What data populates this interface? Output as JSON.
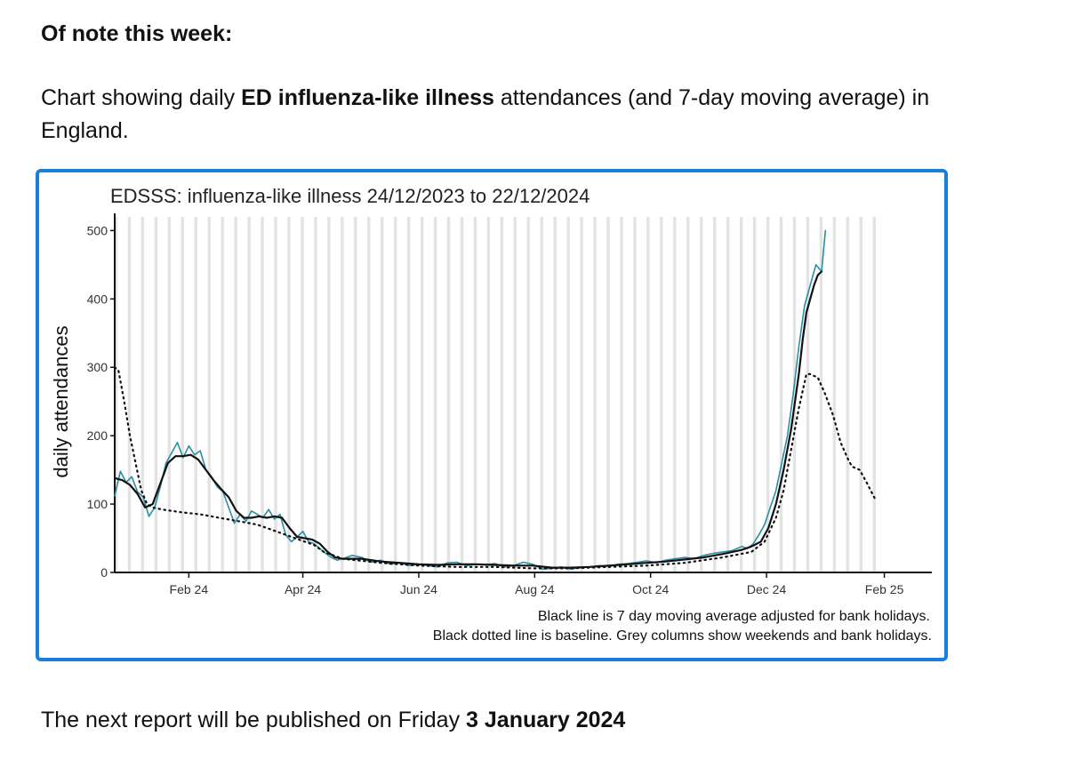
{
  "heading": "Of note this week:",
  "intro": {
    "before": "Chart showing daily ",
    "bold": "ED influenza-like illness",
    "after": " attendances (and 7-day moving average) in England."
  },
  "footer": {
    "before": "The next report will be published on Friday ",
    "bold": "3 January 2024"
  },
  "chart_data": {
    "type": "line",
    "title": "EDSSS: influenza-like illness 24/12/2023 to 22/12/2024",
    "xlabel": "",
    "ylabel": "daily attendances",
    "ylim": [
      0,
      520
    ],
    "xlim_days": [
      0,
      430
    ],
    "y_ticks": [
      0,
      100,
      200,
      300,
      400,
      500
    ],
    "x_ticks": [
      {
        "label": "Feb 24",
        "day": 39
      },
      {
        "label": "Apr 24",
        "day": 99
      },
      {
        "label": "Jun 24",
        "day": 160
      },
      {
        "label": "Aug 24",
        "day": 221
      },
      {
        "label": "Oct 24",
        "day": 282
      },
      {
        "label": "Dec 24",
        "day": 343
      },
      {
        "label": "Feb 25",
        "day": 405
      }
    ],
    "weekend_start_day": 0,
    "weekend_end_day": 402,
    "series": [
      {
        "name": "Daily attendances",
        "color": "#2a8fa5",
        "style": "solid",
        "x": [
          0,
          3,
          6,
          9,
          12,
          15,
          18,
          21,
          24,
          27,
          30,
          33,
          36,
          39,
          42,
          45,
          48,
          51,
          54,
          57,
          60,
          63,
          66,
          69,
          72,
          75,
          78,
          81,
          84,
          87,
          90,
          93,
          96,
          99,
          102,
          105,
          108,
          111,
          114,
          117,
          120,
          125,
          130,
          135,
          140,
          145,
          150,
          155,
          160,
          165,
          170,
          175,
          180,
          185,
          190,
          195,
          200,
          205,
          210,
          215,
          220,
          225,
          230,
          235,
          240,
          245,
          250,
          255,
          260,
          265,
          270,
          275,
          280,
          285,
          290,
          295,
          300,
          305,
          310,
          315,
          320,
          325,
          330,
          333,
          336,
          339,
          342,
          345,
          348,
          351,
          354,
          357,
          360,
          363,
          366,
          369,
          372,
          374
        ],
        "values": [
          112,
          148,
          132,
          140,
          118,
          110,
          82,
          95,
          125,
          160,
          175,
          190,
          168,
          185,
          172,
          178,
          150,
          140,
          125,
          118,
          95,
          72,
          85,
          75,
          90,
          85,
          80,
          92,
          78,
          85,
          55,
          45,
          52,
          60,
          45,
          42,
          35,
          28,
          22,
          18,
          20,
          25,
          22,
          15,
          18,
          12,
          14,
          10,
          12,
          10,
          8,
          14,
          15,
          10,
          12,
          11,
          13,
          8,
          10,
          15,
          12,
          5,
          6,
          8,
          5,
          7,
          8,
          10,
          9,
          12,
          13,
          15,
          17,
          14,
          18,
          20,
          22,
          20,
          25,
          28,
          30,
          32,
          38,
          35,
          42,
          55,
          70,
          95,
          120,
          160,
          200,
          260,
          330,
          390,
          420,
          450,
          440,
          500
        ]
      },
      {
        "name": "7 day moving average",
        "color": "#111111",
        "style": "solid",
        "x": [
          0,
          4,
          8,
          12,
          16,
          20,
          24,
          28,
          32,
          36,
          40,
          44,
          48,
          52,
          56,
          60,
          64,
          68,
          72,
          76,
          80,
          84,
          88,
          92,
          96,
          100,
          104,
          108,
          112,
          116,
          120,
          130,
          140,
          150,
          160,
          170,
          180,
          190,
          200,
          210,
          220,
          230,
          240,
          250,
          260,
          270,
          280,
          290,
          300,
          310,
          320,
          325,
          330,
          335,
          340,
          344,
          348,
          352,
          356,
          360,
          362,
          364,
          366,
          368,
          370,
          372
        ],
        "values": [
          138,
          135,
          128,
          115,
          95,
          100,
          130,
          160,
          170,
          170,
          172,
          165,
          150,
          135,
          122,
          110,
          90,
          80,
          80,
          82,
          80,
          82,
          80,
          65,
          52,
          50,
          48,
          42,
          30,
          22,
          20,
          20,
          16,
          14,
          12,
          11,
          12,
          12,
          11,
          10,
          10,
          7,
          7,
          8,
          10,
          12,
          14,
          16,
          19,
          22,
          27,
          30,
          33,
          38,
          45,
          65,
          100,
          150,
          210,
          290,
          340,
          380,
          400,
          420,
          435,
          440
        ]
      },
      {
        "name": "Baseline",
        "color": "#111111",
        "style": "dotted",
        "x": [
          0,
          2,
          5,
          8,
          11,
          14,
          17,
          20,
          25,
          35,
          45,
          55,
          65,
          75,
          85,
          95,
          105,
          110,
          120,
          140,
          160,
          180,
          200,
          220,
          240,
          260,
          280,
          300,
          320,
          335,
          342,
          348,
          352,
          356,
          360,
          364,
          366,
          370,
          374,
          378,
          382,
          386,
          388,
          392,
          396,
          400
        ],
        "values": [
          300,
          295,
          250,
          200,
          160,
          120,
          100,
          95,
          92,
          88,
          85,
          80,
          75,
          70,
          60,
          50,
          40,
          30,
          20,
          14,
          10,
          8,
          8,
          6,
          6,
          8,
          10,
          14,
          22,
          30,
          45,
          80,
          120,
          180,
          240,
          290,
          290,
          285,
          260,
          230,
          190,
          165,
          155,
          150,
          130,
          108
        ]
      }
    ],
    "notes": [
      "Black line is 7 day moving average adjusted for bank holidays.",
      "Black dotted line is baseline. Grey columns show weekends and bank holidays."
    ]
  }
}
